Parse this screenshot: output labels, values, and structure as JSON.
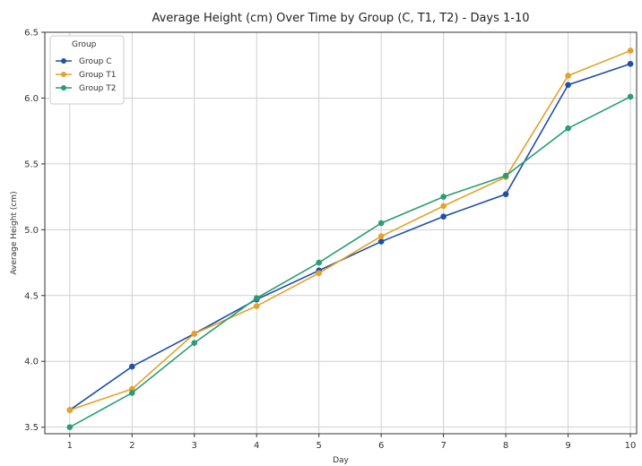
{
  "chart_data": {
    "type": "line",
    "title": "Average Height (cm) Over Time by Group (C, T1, T2) - Days 1-10",
    "xlabel": "Day",
    "ylabel": "Average Height (cm)",
    "x": [
      1,
      2,
      3,
      4,
      5,
      6,
      7,
      8,
      9,
      10
    ],
    "xlim": [
      0.6,
      10.1
    ],
    "ylim": [
      3.45,
      6.5
    ],
    "yticks": [
      3.5,
      4.0,
      4.5,
      5.0,
      5.5,
      6.0,
      6.5
    ],
    "ytick_labels": [
      "3.5",
      "4.0",
      "4.5",
      "5.0",
      "5.5",
      "6.0",
      "6.5"
    ],
    "xticks": [
      1,
      2,
      3,
      4,
      5,
      6,
      7,
      8,
      9,
      10
    ],
    "xtick_labels": [
      "1",
      "2",
      "3",
      "4",
      "5",
      "6",
      "7",
      "8",
      "9",
      "10"
    ],
    "grid": true,
    "legend": {
      "title": "Group",
      "placement": "top-left"
    },
    "series": [
      {
        "name": "Group C",
        "color": "#1f4fa8",
        "values": [
          3.63,
          3.96,
          4.21,
          4.47,
          4.69,
          4.91,
          5.1,
          5.27,
          6.1,
          6.26
        ]
      },
      {
        "name": "Group T1",
        "color": "#e5a12a",
        "values": [
          3.63,
          3.79,
          4.21,
          4.42,
          4.67,
          4.95,
          5.18,
          5.4,
          6.17,
          6.36
        ]
      },
      {
        "name": "Group T2",
        "color": "#2a9d74",
        "values": [
          3.5,
          3.76,
          4.14,
          4.48,
          4.75,
          5.05,
          5.25,
          5.41,
          5.77,
          6.01
        ]
      }
    ]
  }
}
